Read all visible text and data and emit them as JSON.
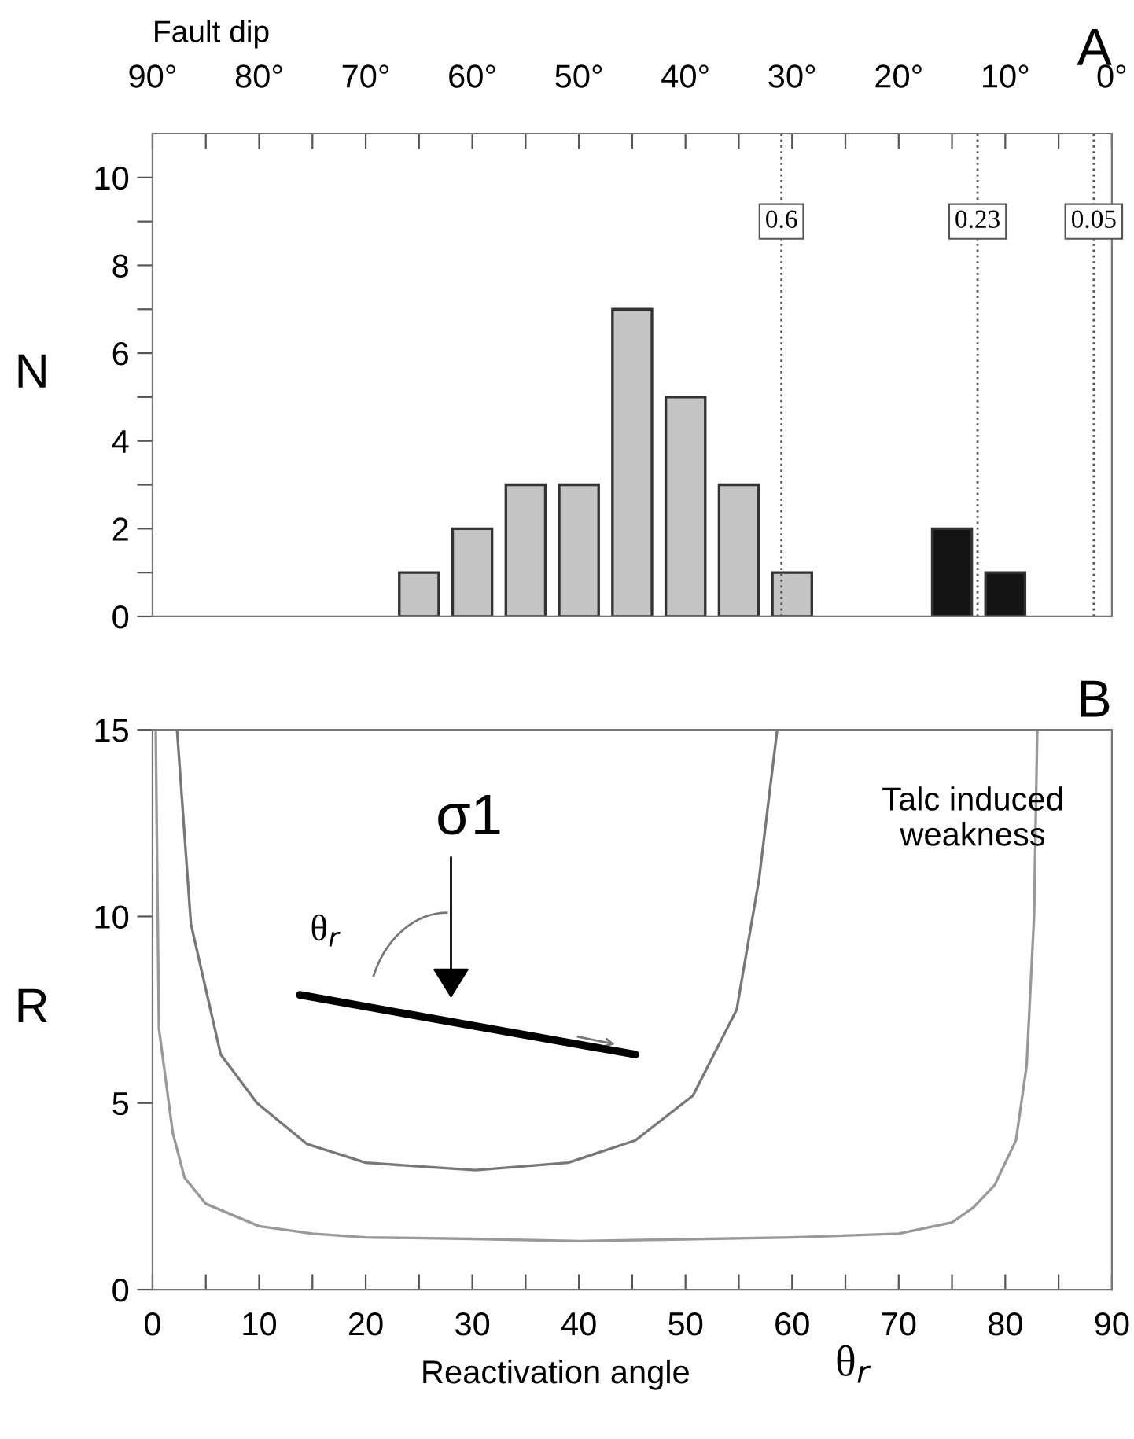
{
  "chart_data": [
    {
      "type": "bar",
      "title": "A",
      "xlabel": "Fault dip",
      "ylabel": "N",
      "xlim": [
        90,
        0
      ],
      "xticks": [
        {
          "value": 90,
          "label": "90°"
        },
        {
          "value": 85,
          "label": null
        },
        {
          "value": 80,
          "label": "80°"
        },
        {
          "value": 75,
          "label": null
        },
        {
          "value": 70,
          "label": "70°"
        },
        {
          "value": 65,
          "label": null
        },
        {
          "value": 60,
          "label": "60°"
        },
        {
          "value": 55,
          "label": null
        },
        {
          "value": 50,
          "label": "50°"
        },
        {
          "value": 45,
          "label": null
        },
        {
          "value": 40,
          "label": "40°"
        },
        {
          "value": 35,
          "label": null
        },
        {
          "value": 30,
          "label": "30°"
        },
        {
          "value": 25,
          "label": null
        },
        {
          "value": 20,
          "label": "20°"
        },
        {
          "value": 15,
          "label": null
        },
        {
          "value": 10,
          "label": "10°"
        },
        {
          "value": 5,
          "label": null
        },
        {
          "value": 0,
          "label": "0°"
        }
      ],
      "ylim": [
        0,
        11
      ],
      "yticks": [
        0,
        {
          "value": 1,
          "label": null
        },
        2,
        {
          "value": 3,
          "label": null
        },
        4,
        {
          "value": 5,
          "label": null
        },
        6,
        {
          "value": 7,
          "label": null
        },
        8,
        {
          "value": 9,
          "label": null
        },
        10
      ],
      "grid": false,
      "series": [
        {
          "color": "#c4c4c4",
          "x": [
            65,
            60,
            55,
            50,
            45,
            40,
            35,
            30
          ],
          "values": [
            1,
            2,
            3,
            3,
            7,
            5,
            3,
            1
          ]
        },
        {
          "color": "#141414",
          "x": [
            15,
            10
          ],
          "values": [
            2,
            1
          ]
        }
      ],
      "ref_lines": [
        {
          "axis": "x",
          "value": 31,
          "line_style": "dotted",
          "color": "#555555"
        },
        {
          "axis": "x",
          "value": 12.6,
          "line_style": "dotted",
          "color": "#555555"
        },
        {
          "axis": "x",
          "value": 1.7,
          "line_style": "dotted",
          "color": "#555555"
        }
      ],
      "annotations": [
        {
          "text": "0.6",
          "x": 31,
          "y": 9
        },
        {
          "text": "0.23",
          "x": 12.6,
          "y": 9
        },
        {
          "text": "0.05",
          "x": 1.7,
          "y": 9
        }
      ]
    },
    {
      "type": "line",
      "title": "B",
      "xlabel": "Reactivation angle",
      "ylabel": "R",
      "xlim": [
        0,
        90
      ],
      "xticks": [
        0,
        {
          "value": 5,
          "label": null
        },
        10,
        {
          "value": 15,
          "label": null
        },
        20,
        {
          "value": 25,
          "label": null
        },
        30,
        {
          "value": 35,
          "label": null
        },
        40,
        {
          "value": 45,
          "label": null
        },
        50,
        {
          "value": 55,
          "label": null
        },
        60,
        {
          "value": 65,
          "label": null
        },
        70,
        {
          "value": 75,
          "label": null
        },
        80,
        {
          "value": 85,
          "label": null
        },
        90
      ],
      "ylim": [
        0,
        15
      ],
      "yticks": [
        0,
        5,
        10,
        15
      ],
      "grid": false,
      "marker": "none",
      "line_style": "solid",
      "series": [
        {
          "color": "#777777",
          "x": [
            2.3,
            3.6,
            6.4,
            9.8,
            14.5,
            20,
            30.3,
            39,
            45.3,
            50.7,
            54.8,
            56.9,
            58.6
          ],
          "values": [
            15,
            9.8,
            6.3,
            5.0,
            3.9,
            3.4,
            3.2,
            3.4,
            4.0,
            5.2,
            7.5,
            11,
            15
          ]
        },
        {
          "color": "#999999",
          "x": [
            0.3,
            0.6,
            1.9,
            3,
            5,
            10,
            15,
            20,
            30,
            40,
            50,
            60,
            70,
            75,
            77,
            79,
            81,
            82,
            82.7,
            83
          ],
          "values": [
            15,
            7,
            4.2,
            3,
            2.3,
            1.7,
            1.5,
            1.4,
            1.36,
            1.3,
            1.35,
            1.4,
            1.5,
            1.8,
            2.2,
            2.8,
            4,
            6,
            10,
            15
          ]
        }
      ],
      "annotations": [
        "σ1",
        "θ$_{r}$",
        "Talc induced weakness",
        "θ$_{r}$"
      ]
    }
  ]
}
